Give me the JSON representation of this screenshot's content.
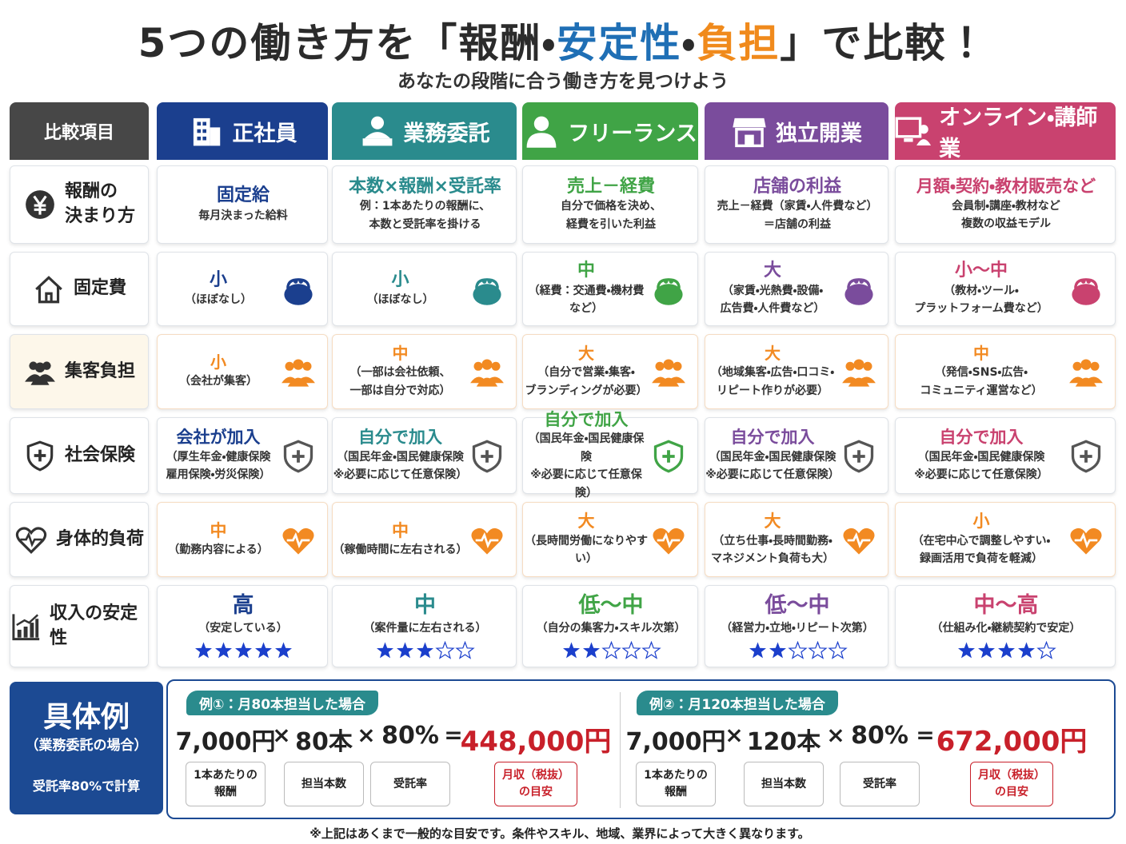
{
  "header": {
    "title": [
      "5つの働き方を「報酬・",
      "安定性",
      "・",
      "負担",
      "」で比較！"
    ],
    "subtitle": "あなたの段階に合う働き方を見つけよう"
  },
  "table": {
    "corner": "比較項目",
    "columns": [
      "正社員",
      "業務委託",
      "フリーランス",
      "独立開業",
      "オンライン・講師業"
    ],
    "rows": [
      {
        "label": [
          "報酬の",
          "決まり方"
        ],
        "cells": [
          {
            "main": "固定給",
            "note": [
              "毎月決まった給料"
            ]
          },
          {
            "main": "本数×報酬×受託率",
            "note": [
              "例：1本あたりの報酬に、",
              "本数と受託率を掛ける"
            ]
          },
          {
            "main": "売上－経費",
            "note": [
              "自分で価格を決め、",
              "経費を引いた利益"
            ]
          },
          {
            "main": "店舗の利益",
            "note": [
              "売上－経費（家賃・人件費など）",
              "＝店舗の利益"
            ]
          },
          {
            "main": "月額・契約・教材販売など",
            "note": [
              "会員制・講座・教材など",
              "複数の収益モデル"
            ]
          }
        ]
      },
      {
        "label": [
          "固定費"
        ],
        "cells": [
          {
            "main": "小",
            "note": [
              "（ほぼなし）"
            ]
          },
          {
            "main": "小",
            "note": [
              "（ほぼなし）"
            ]
          },
          {
            "main": "中",
            "note": [
              "（経費：交通費・機材費など）"
            ]
          },
          {
            "main": "大",
            "note": [
              "（家賃・光熱費・設備・",
              "広告費・人件費など）"
            ]
          },
          {
            "main": "小〜中",
            "note": [
              "（教材・ツール・",
              "プラットフォーム費など）"
            ]
          }
        ]
      },
      {
        "label": [
          "集客負担"
        ],
        "cells": [
          {
            "main": "小",
            "note": [
              "（会社が集客）"
            ]
          },
          {
            "main": "中",
            "note": [
              "（一部は会社依頼、",
              "一部は自分で対応）"
            ]
          },
          {
            "main": "大",
            "note": [
              "（自分で営業・集客・",
              "ブランディングが必要）"
            ]
          },
          {
            "main": "大",
            "note": [
              "（地域集客・広告・口コミ・",
              "リピート作りが必要）"
            ]
          },
          {
            "main": "中",
            "note": [
              "（発信・SNS・広告・",
              "コミュニティ運営など）"
            ]
          }
        ]
      },
      {
        "label": [
          "社会保険"
        ],
        "cells": [
          {
            "main": "会社が加入",
            "note": [
              "（厚生年金・健康保険",
              "雇用保険・労災保険）"
            ]
          },
          {
            "main": "自分で加入",
            "note": [
              "（国民年金・国民健康保険",
              "※必要に応じて任意保険）"
            ]
          },
          {
            "main": "自分で加入",
            "note": [
              "（国民年金・国民健康保険",
              "※必要に応じて任意保険）"
            ]
          },
          {
            "main": "自分で加入",
            "note": [
              "（国民年金・国民健康保険",
              "※必要に応じて任意保険）"
            ]
          },
          {
            "main": "自分で加入",
            "note": [
              "（国民年金・国民健康保険",
              "※必要に応じて任意保険）"
            ]
          }
        ]
      },
      {
        "label": [
          "身体的負荷"
        ],
        "cells": [
          {
            "main": "中",
            "note": [
              "（勤務内容による）"
            ]
          },
          {
            "main": "中",
            "note": [
              "（稼働時間に左右される）"
            ]
          },
          {
            "main": "大",
            "note": [
              "（長時間労働になりやすい）"
            ]
          },
          {
            "main": "大",
            "note": [
              "（立ち仕事・長時間勤務・",
              "マネジメント負荷も大）"
            ]
          },
          {
            "main": "小",
            "note": [
              "（在宅中心で調整しやすい・",
              "録画活用で負荷を軽減）"
            ]
          }
        ]
      },
      {
        "label": [
          "収入の安定性"
        ],
        "cells": [
          {
            "main": "高",
            "note": [
              "（安定している）"
            ],
            "stars": 5
          },
          {
            "main": "中",
            "note": [
              "（案件量に左右される）"
            ],
            "stars": 3
          },
          {
            "main": "低〜中",
            "note": [
              "（自分の集客力・スキル次第）"
            ],
            "stars": 2
          },
          {
            "main": "低〜中",
            "note": [
              "（経営力・立地・リピート次第）"
            ],
            "stars": 2
          },
          {
            "main": "中〜高",
            "note": [
              "（仕組み化・継続契約で安定）"
            ],
            "stars": 4
          }
        ]
      }
    ]
  },
  "example": {
    "title": "具体例",
    "subtitle": "（業務委託の場合）",
    "note": "受託率80%で計算",
    "cases": [
      {
        "tag": "例①：月80本担当した場合",
        "terms": [
          "7,000円",
          "×",
          "80本",
          "×",
          "80%",
          "=",
          "448,000円"
        ],
        "labels": [
          [
            "1本あたりの",
            "報酬"
          ],
          [
            "担当本数"
          ],
          [
            "受託率"
          ],
          [
            "月収（税抜）",
            "の目安"
          ]
        ]
      },
      {
        "tag": "例②：月120本担当した場合",
        "terms": [
          "7,000円",
          "×",
          "120本",
          "×",
          "80%",
          "=",
          "672,000円"
        ],
        "labels": [
          [
            "1本あたりの",
            "報酬"
          ],
          [
            "担当本数"
          ],
          [
            "受託率"
          ],
          [
            "月収（税抜）",
            "の目安"
          ]
        ]
      }
    ]
  },
  "footnote": "※上記はあくまで一般的な目安です。条件やスキル、地域、業界によって大きく異なります。"
}
